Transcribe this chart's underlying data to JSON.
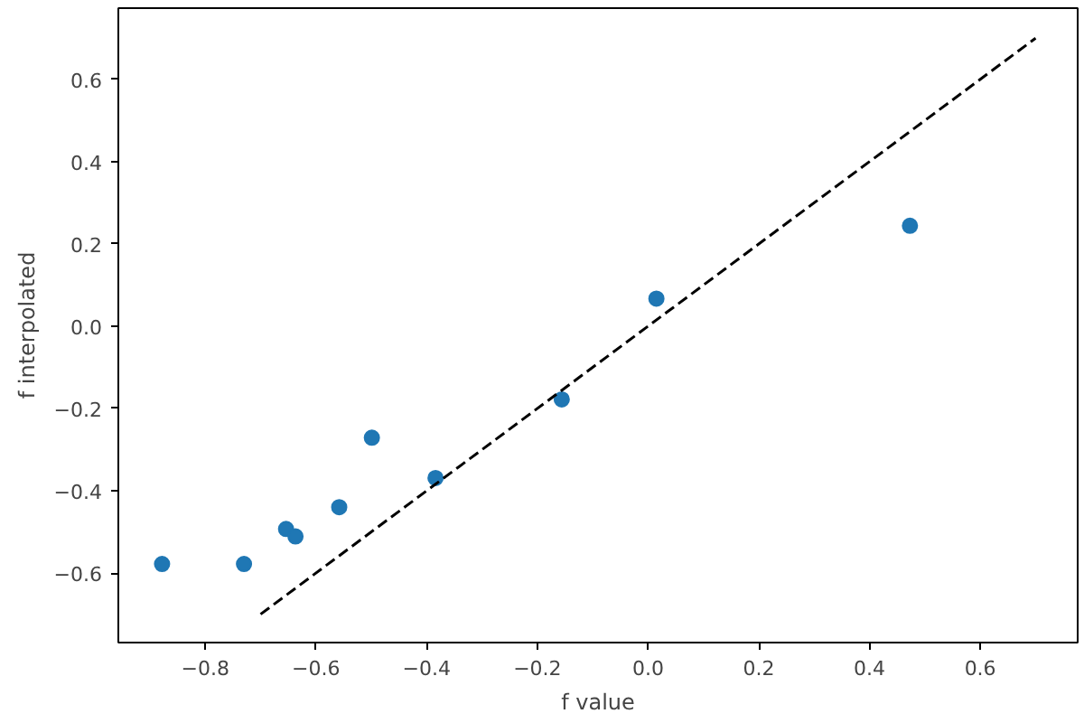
{
  "chart_data": {
    "type": "scatter",
    "xlabel": "f value",
    "ylabel": "f interpolated",
    "xlim": [
      -0.957,
      0.776
    ],
    "ylim": [
      -0.769,
      0.773
    ],
    "xticks": [
      {
        "value": -0.8,
        "label": "−0.8"
      },
      {
        "value": -0.6,
        "label": "−0.6"
      },
      {
        "value": -0.4,
        "label": "−0.4"
      },
      {
        "value": -0.2,
        "label": "−0.2"
      },
      {
        "value": 0.0,
        "label": "0.0"
      },
      {
        "value": 0.2,
        "label": "0.2"
      },
      {
        "value": 0.4,
        "label": "0.4"
      },
      {
        "value": 0.6,
        "label": "0.6"
      }
    ],
    "yticks": [
      {
        "value": -0.6,
        "label": "−0.6"
      },
      {
        "value": -0.4,
        "label": "−0.4"
      },
      {
        "value": -0.2,
        "label": "−0.2"
      },
      {
        "value": 0.0,
        "label": "0.0"
      },
      {
        "value": 0.2,
        "label": "0.2"
      },
      {
        "value": 0.4,
        "label": "0.4"
      },
      {
        "value": 0.6,
        "label": "0.6"
      }
    ],
    "grid": false,
    "marker": "circle",
    "series": [
      {
        "color": "#1f77b4",
        "x": [
          -0.878,
          -0.73,
          -0.654,
          -0.637,
          -0.558,
          -0.499,
          -0.384,
          -0.156,
          0.015,
          0.473
        ],
        "values": [
          -0.578,
          -0.578,
          -0.493,
          -0.511,
          -0.44,
          -0.271,
          -0.369,
          -0.178,
          0.067,
          0.244
        ]
      },
      {
        "type": "line",
        "color": "#000000",
        "line_style": "dashed",
        "marker": "none",
        "x": [
          -0.7,
          0.7
        ],
        "values": [
          -0.7,
          0.7
        ]
      }
    ]
  }
}
